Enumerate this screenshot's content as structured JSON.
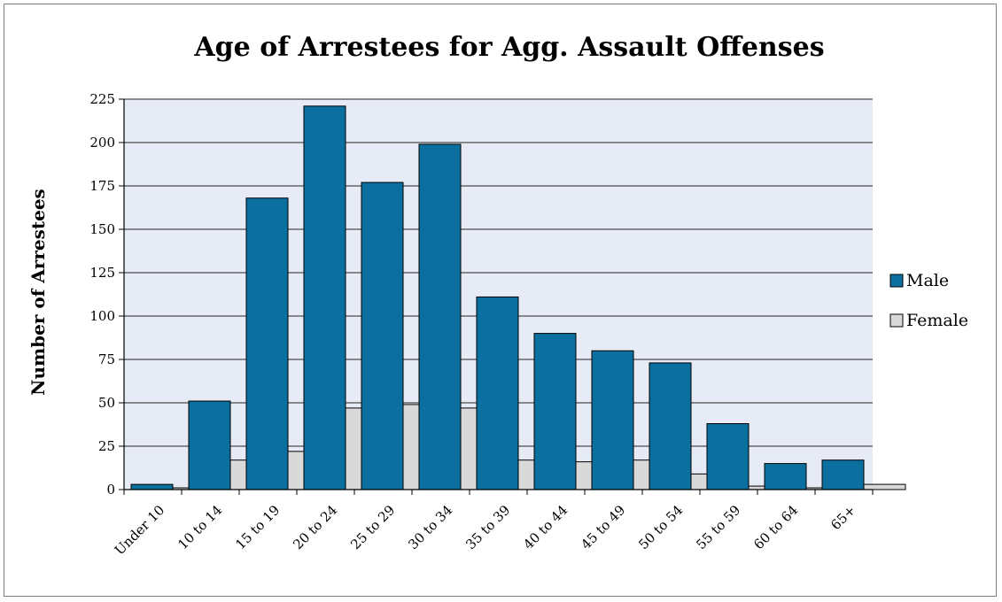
{
  "chart_data": {
    "type": "bar",
    "title": "Age of Arrestees for Agg. Assault Offenses",
    "xlabel": "",
    "ylabel": "Number of Arrestees",
    "categories": [
      "Under 10",
      "10 to 14",
      "15 to 19",
      "20 to 24",
      "25 to 29",
      "30 to 34",
      "35 to 39",
      "40 to 44",
      "45 to 49",
      "50 to 54",
      "55 to 59",
      "60 to 64",
      "65+"
    ],
    "series": [
      {
        "name": "Male",
        "color": "#0b6fa0",
        "values": [
          3,
          51,
          168,
          221,
          177,
          199,
          111,
          90,
          80,
          73,
          38,
          15,
          17
        ]
      },
      {
        "name": "Female",
        "color": "#d9d9d9",
        "values": [
          1,
          17,
          22,
          47,
          49,
          47,
          17,
          16,
          17,
          9,
          2,
          1,
          3
        ]
      }
    ],
    "ylim": [
      0,
      225
    ],
    "yticks": [
      0,
      25,
      50,
      75,
      100,
      125,
      150,
      175,
      200,
      225
    ],
    "grid": true,
    "legend_position": "right",
    "plot_background": "#e6ebf5"
  }
}
